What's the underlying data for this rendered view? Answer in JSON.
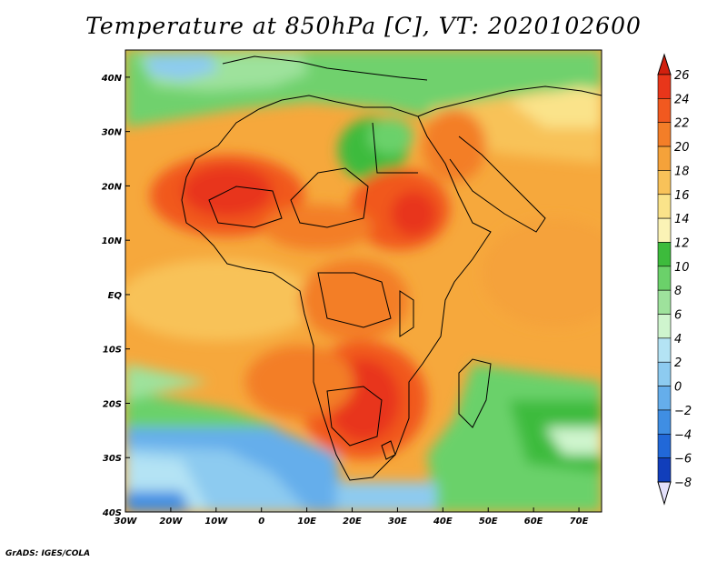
{
  "title": "Temperature at 850hPa [C], VT: 2020102600",
  "credit": "GrADS: IGES/COLA",
  "map": {
    "lon_range": [
      -30,
      75
    ],
    "lat_range": [
      -40,
      45
    ],
    "x_ticks": [
      "30W",
      "20W",
      "10W",
      "0",
      "10E",
      "20E",
      "30E",
      "40E",
      "50E",
      "60E",
      "70E"
    ],
    "x_tick_values": [
      -30,
      -20,
      -10,
      0,
      10,
      20,
      30,
      40,
      50,
      60,
      70
    ],
    "y_ticks": [
      "40N",
      "30N",
      "20N",
      "10N",
      "EQ",
      "10S",
      "20S",
      "30S",
      "40S"
    ],
    "y_tick_values": [
      40,
      30,
      20,
      10,
      0,
      -10,
      -20,
      -30,
      -40
    ]
  },
  "colorbar": {
    "levels": [
      "26",
      "24",
      "22",
      "20",
      "18",
      "16",
      "14",
      "12",
      "10",
      "8",
      "6",
      "4",
      "2",
      "0",
      "−2",
      "−4",
      "−6",
      "−8"
    ],
    "top_color": "#d1200e",
    "bottom_color": "#e4e0fa",
    "bin_colors": [
      "#e8361a",
      "#f1591f",
      "#f37e28",
      "#f5a23a",
      "#f8c259",
      "#fae38a",
      "#fbf3b6",
      "#3dbb3c",
      "#6bd16a",
      "#9ee29c",
      "#cff5ce",
      "#b4e3f4",
      "#8dcbf0",
      "#65aeeb",
      "#3f8ee3",
      "#2168d8",
      "#113ebb",
      "#0c1f7a"
    ]
  }
}
